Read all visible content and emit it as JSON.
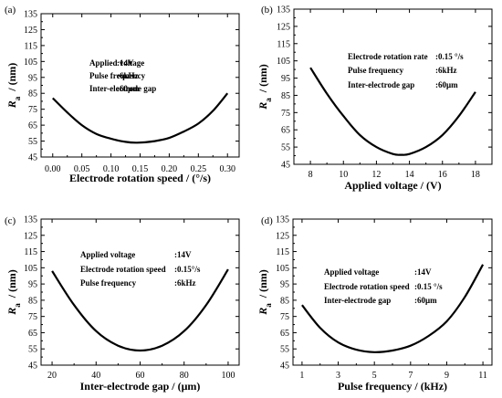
{
  "chart_data": [
    {
      "type": "line",
      "panel_label": "(a)",
      "xlabel": "Electrode rotation speed  / (°/s)",
      "ylabel": "R",
      "ylabel_sub": "a",
      "ylabel_unit": "/  (nm)",
      "xlim": [
        -0.02,
        0.32
      ],
      "ylim": [
        45,
        135
      ],
      "xticks": [
        "0.00",
        "0.05",
        "0.10",
        "0.15",
        "0.20",
        "0.25",
        "0.30"
      ],
      "xtick_values": [
        0,
        0.05,
        0.1,
        0.15,
        0.2,
        0.25,
        0.3
      ],
      "yticks": [
        "45",
        "55",
        "65",
        "75",
        "85",
        "95",
        "105",
        "115",
        "125",
        "135"
      ],
      "ytick_values": [
        45,
        55,
        65,
        75,
        85,
        95,
        105,
        115,
        125,
        135
      ],
      "info": [
        {
          "label": "Applied voltage",
          "value": ":14V"
        },
        {
          "label": "Pulse frequency",
          "value": ":6kHz"
        },
        {
          "label": "Inter-electrode gap",
          "value": ":60μm"
        }
      ],
      "series": [
        {
          "x": [
            0,
            0.025,
            0.05,
            0.075,
            0.1,
            0.125,
            0.145,
            0.175,
            0.2,
            0.225,
            0.25,
            0.275,
            0.3
          ],
          "y": [
            82,
            73,
            65,
            59.5,
            56.5,
            54.5,
            54,
            55,
            57,
            61,
            66,
            74,
            85
          ]
        }
      ]
    },
    {
      "type": "line",
      "panel_label": "(b)",
      "xlabel": "Applied voltage  /  (V)",
      "ylabel": "R",
      "ylabel_sub": "a",
      "ylabel_unit": "/  (nm)",
      "xlim": [
        7,
        19
      ],
      "ylim": [
        45,
        135
      ],
      "xticks": [
        "8",
        "10",
        "12",
        "14",
        "16",
        "18"
      ],
      "xtick_values": [
        8,
        10,
        12,
        14,
        16,
        18
      ],
      "yticks": [
        "45",
        "55",
        "65",
        "75",
        "85",
        "95",
        "105",
        "115",
        "125",
        "135"
      ],
      "ytick_values": [
        45,
        55,
        65,
        75,
        85,
        95,
        105,
        115,
        125,
        135
      ],
      "info": [
        {
          "label": "Electrode rotation rate",
          "value": ":0.15 °/s"
        },
        {
          "label": "Pulse frequency",
          "value": ":6kHz"
        },
        {
          "label": "Inter-electrode gap",
          "value": ":60μm"
        }
      ],
      "series": [
        {
          "x": [
            8,
            9,
            10,
            11,
            12,
            13,
            13.5,
            14,
            15,
            16,
            17,
            18
          ],
          "y": [
            101,
            86,
            73,
            62,
            55,
            51,
            50.5,
            51,
            55,
            62,
            73,
            87
          ]
        }
      ]
    },
    {
      "type": "line",
      "panel_label": "(c)",
      "xlabel": "Inter-electrode gap  / (μm)",
      "ylabel": "R",
      "ylabel_sub": "a",
      "ylabel_unit": "/  (nm)",
      "xlim": [
        15,
        105
      ],
      "ylim": [
        45,
        135
      ],
      "xticks": [
        "20",
        "40",
        "60",
        "80",
        "100"
      ],
      "xtick_values": [
        20,
        40,
        60,
        80,
        100
      ],
      "yticks": [
        "45",
        "55",
        "65",
        "75",
        "85",
        "95",
        "105",
        "115",
        "125",
        "135"
      ],
      "ytick_values": [
        45,
        55,
        65,
        75,
        85,
        95,
        105,
        115,
        125,
        135
      ],
      "info": [
        {
          "label": "Applied voltage",
          "value": ":14V"
        },
        {
          "label": "Electrode rotation speed",
          "value": ":0.15°/s"
        },
        {
          "label": "Pulse frequency",
          "value": ":6kHz"
        }
      ],
      "series": [
        {
          "x": [
            20,
            30,
            40,
            50,
            60,
            70,
            80,
            90,
            100
          ],
          "y": [
            103,
            82,
            66,
            57,
            54,
            57,
            66,
            82,
            104
          ]
        }
      ]
    },
    {
      "type": "line",
      "panel_label": "(d)",
      "xlabel": "Pulse frequency  / (kHz)",
      "ylabel": "R",
      "ylabel_sub": "a",
      "ylabel_unit": "/  (nm)",
      "xlim": [
        0.5,
        11.5
      ],
      "ylim": [
        45,
        135
      ],
      "xticks": [
        "1",
        "3",
        "5",
        "7",
        "9",
        "11"
      ],
      "xtick_values": [
        1,
        3,
        5,
        7,
        9,
        11
      ],
      "yticks": [
        "45",
        "55",
        "65",
        "75",
        "85",
        "95",
        "105",
        "115",
        "125",
        "135"
      ],
      "ytick_values": [
        45,
        55,
        65,
        75,
        85,
        95,
        105,
        115,
        125,
        135
      ],
      "info": [
        {
          "label": "Applied voltage",
          "value": ":14V"
        },
        {
          "label": "Electrode rotation speed",
          "value": ":0.15 °/s"
        },
        {
          "label": "Inter-electrode gap",
          "value": ":60μm"
        }
      ],
      "series": [
        {
          "x": [
            1,
            2,
            3,
            4,
            5,
            6,
            7,
            8,
            9,
            10,
            11
          ],
          "y": [
            82,
            68,
            59,
            54.5,
            53,
            54,
            57,
            63,
            72,
            87,
            107
          ]
        }
      ]
    }
  ]
}
